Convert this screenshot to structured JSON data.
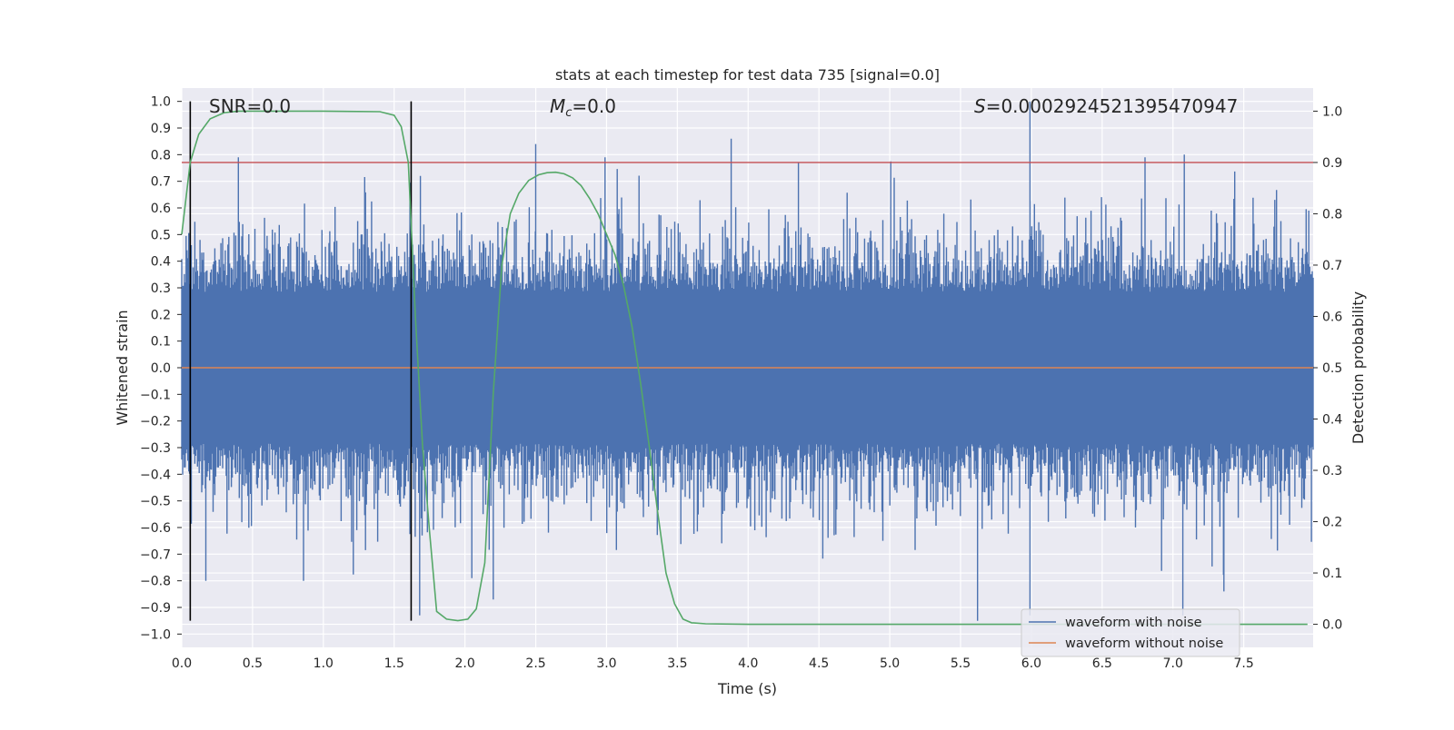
{
  "chart_data": {
    "type": "line",
    "title": "stats at each timestep for test data 735 [signal=0.0]",
    "xlabel": "Time (s)",
    "ylabel": "Whitened strain",
    "ylabel_right": "Detection probability",
    "xlim": [
      0.0,
      7.99
    ],
    "ylim": [
      -1.05,
      1.05
    ],
    "ylim_right": [
      -0.045,
      1.045
    ],
    "x_ticks": [
      "0.0",
      "0.5",
      "1.0",
      "1.5",
      "2.0",
      "2.5",
      "3.0",
      "3.5",
      "4.0",
      "4.5",
      "5.0",
      "5.5",
      "6.0",
      "6.5",
      "7.0",
      "7.5"
    ],
    "y_ticks": [
      "1.0",
      "0.9",
      "0.8",
      "0.7",
      "0.6",
      "0.5",
      "0.4",
      "0.3",
      "0.2",
      "0.1",
      "0.0",
      "-0.1",
      "-0.2",
      "-0.3",
      "-0.4",
      "-0.5",
      "-0.6",
      "-0.7",
      "-0.8",
      "-0.9",
      "-1.0"
    ],
    "y_ticks_right": [
      "1.0",
      "0.9",
      "0.8",
      "0.7",
      "0.6",
      "0.5",
      "0.4",
      "0.3",
      "0.2",
      "0.1",
      "0.0"
    ],
    "grid": true,
    "legend_position": "lower-right",
    "annotations": {
      "snr": "SNR=0.0",
      "mc_symbol": "M",
      "mc_sub": "c",
      "mc_value": "=0.0",
      "s_symbol": "S",
      "s_value": "=0.00029245213954709​47"
    },
    "vertical_lines_x": [
      0.06,
      1.62
    ],
    "threshold_right": 0.9,
    "series": [
      {
        "name": "waveform with noise",
        "color": "#4c72b0",
        "kind": "noise",
        "x_range": [
          0.0,
          7.99
        ],
        "typical_abs_max": 0.3,
        "peaks": [
          {
            "x": 2.5,
            "y": 0.84
          },
          {
            "x": 3.88,
            "y": 0.86
          },
          {
            "x": 5.99,
            "y": 1.0
          },
          {
            "x": 7.08,
            "y": 0.8
          },
          {
            "x": 5.62,
            "y": -0.95
          },
          {
            "x": 5.99,
            "y": -0.93
          },
          {
            "x": 1.68,
            "y": -0.93
          },
          {
            "x": 2.2,
            "y": -0.87
          },
          {
            "x": 0.17,
            "y": -0.8
          },
          {
            "x": 0.86,
            "y": -0.8
          },
          {
            "x": 7.07,
            "y": -0.93
          },
          {
            "x": 7.36,
            "y": -0.84
          }
        ]
      },
      {
        "name": "waveform without noise",
        "color": "#dd8452",
        "kind": "flat",
        "y": 0.0
      },
      {
        "name": "detection probability",
        "color": "#55a868",
        "axis": "right",
        "x": [
          0.0,
          0.06,
          0.12,
          0.2,
          0.3,
          0.4,
          0.6,
          1.0,
          1.4,
          1.5,
          1.55,
          1.6,
          1.65,
          1.7,
          1.75,
          1.8,
          1.87,
          1.95,
          2.02,
          2.08,
          2.14,
          2.2,
          2.26,
          2.32,
          2.38,
          2.45,
          2.52,
          2.58,
          2.64,
          2.7,
          2.76,
          2.82,
          2.88,
          2.94,
          3.0,
          3.06,
          3.12,
          3.18,
          3.24,
          3.3,
          3.36,
          3.42,
          3.48,
          3.54,
          3.6,
          3.7,
          4.0,
          5.0,
          6.0,
          7.0,
          7.95
        ],
        "y": [
          0.76,
          0.9,
          0.955,
          0.985,
          0.997,
          1.0,
          1.0,
          1.0,
          0.999,
          0.992,
          0.97,
          0.9,
          0.6,
          0.35,
          0.18,
          0.025,
          0.01,
          0.007,
          0.01,
          0.03,
          0.12,
          0.45,
          0.7,
          0.8,
          0.84,
          0.865,
          0.876,
          0.88,
          0.881,
          0.878,
          0.87,
          0.855,
          0.83,
          0.8,
          0.76,
          0.72,
          0.66,
          0.58,
          0.47,
          0.35,
          0.22,
          0.1,
          0.04,
          0.01,
          0.003,
          0.001,
          0.0,
          0.0,
          0.0,
          0.0,
          0.0
        ]
      }
    ]
  }
}
